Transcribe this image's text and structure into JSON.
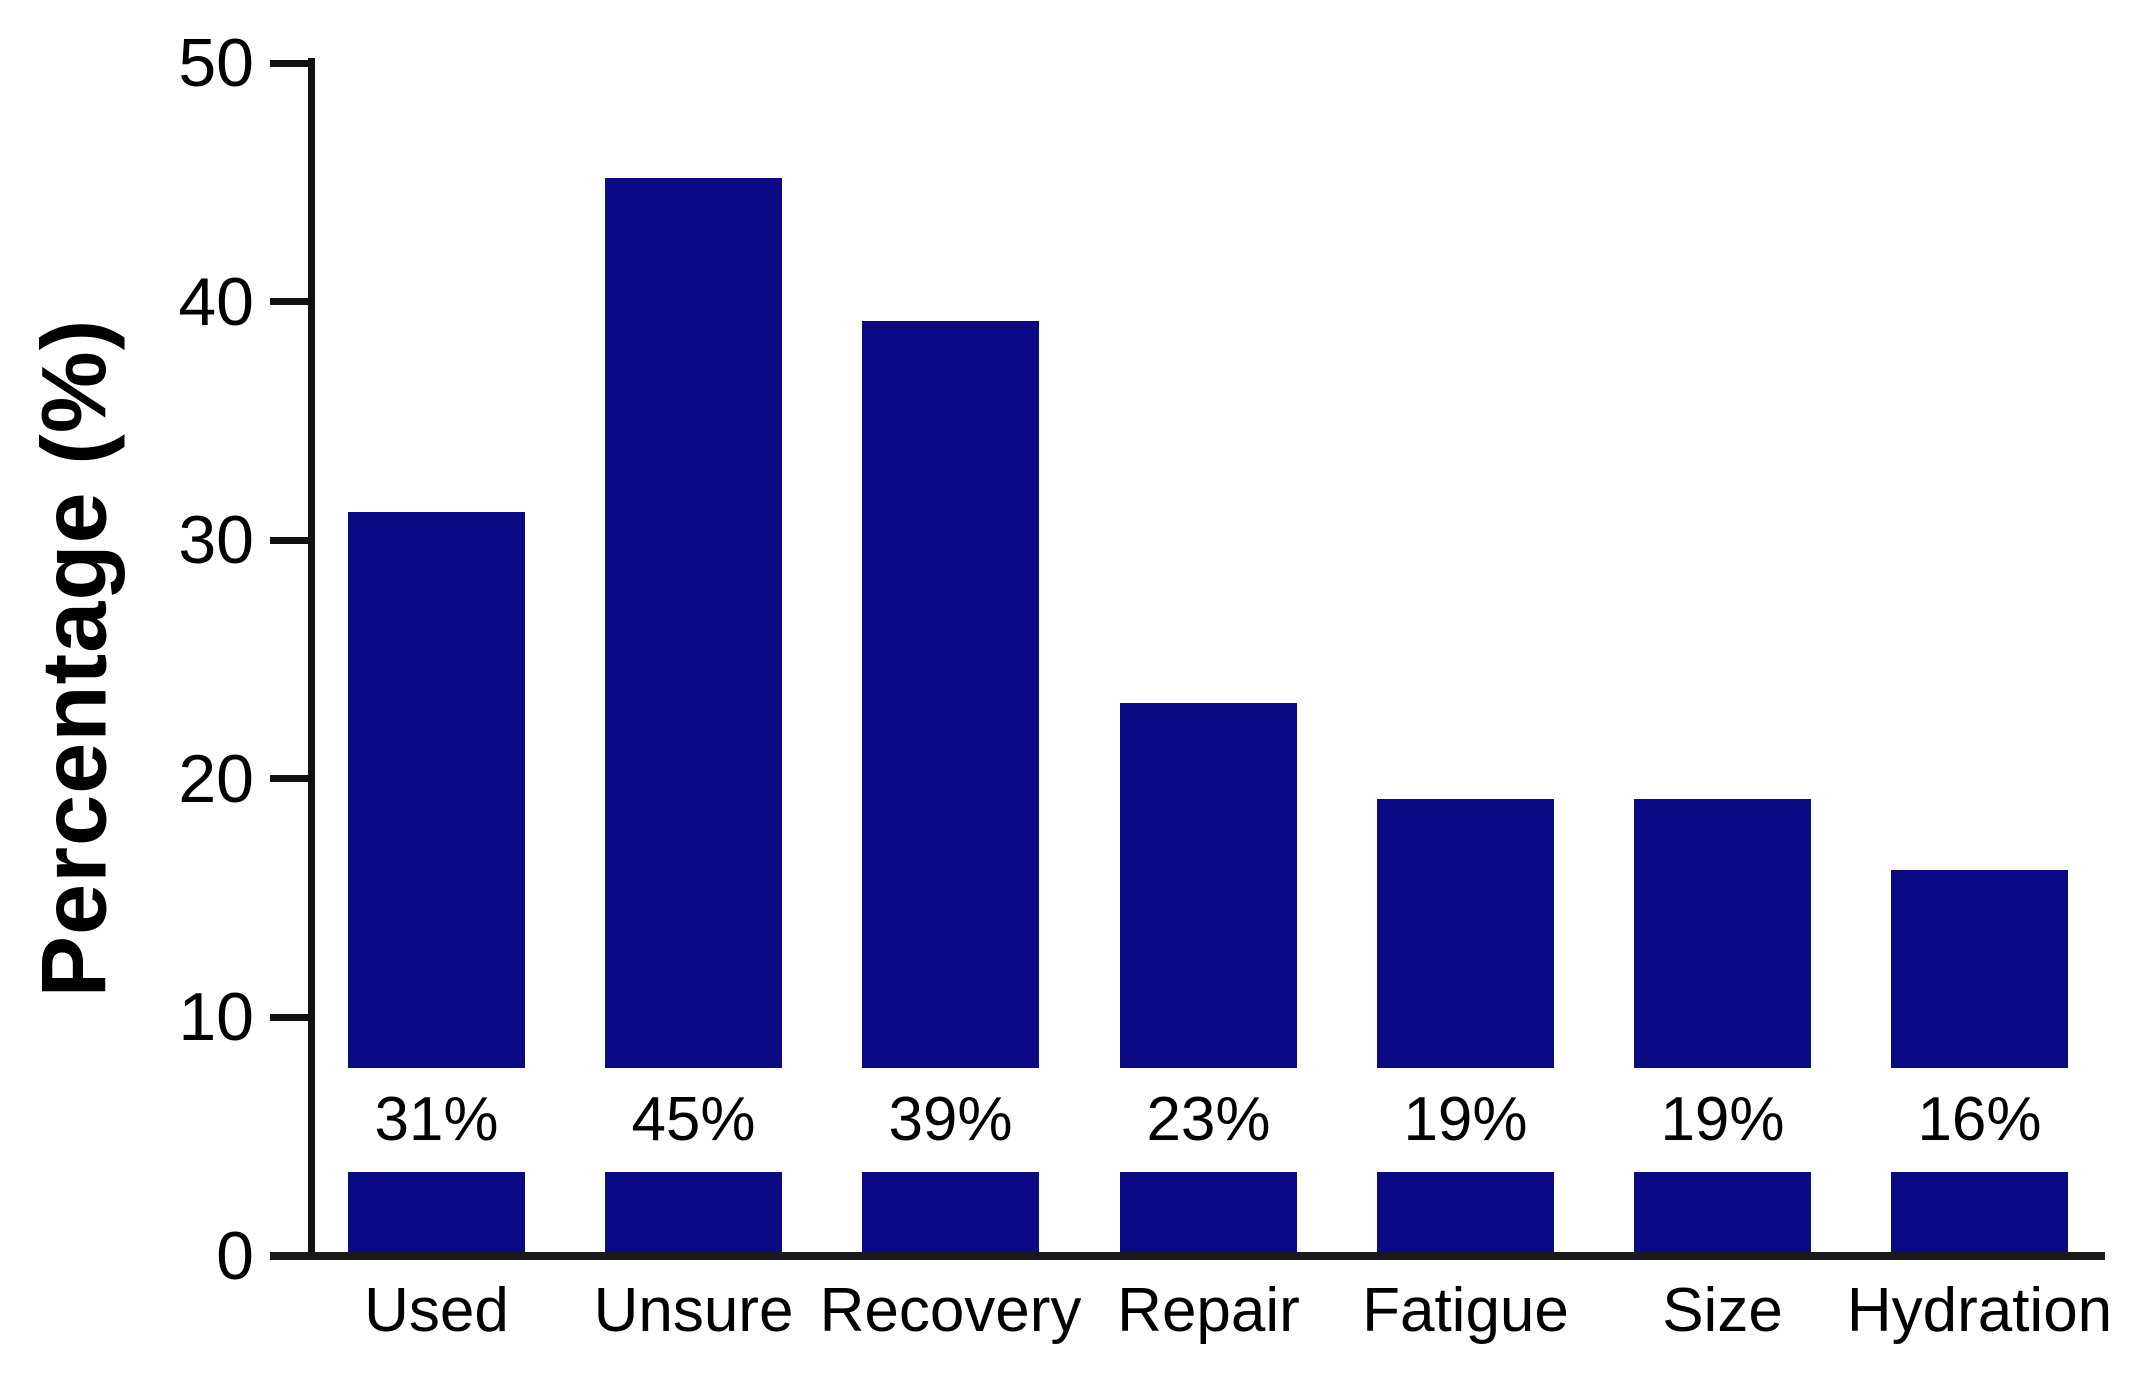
{
  "chart_data": {
    "type": "bar",
    "categories": [
      "Used",
      "Unsure",
      "Recovery",
      "Repair",
      "Fatigue",
      "Size",
      "Hydration"
    ],
    "values": [
      31,
      45,
      39,
      23,
      19,
      19,
      16
    ],
    "value_labels": [
      "31%",
      "45%",
      "39%",
      "23%",
      "19%",
      "19%",
      "16%"
    ],
    "title": "",
    "xlabel": "",
    "ylabel": "Percentage (%)",
    "ylim": [
      0,
      50
    ],
    "yticks": [
      0,
      10,
      20,
      30,
      40,
      50
    ],
    "grid": false,
    "legend": false,
    "bar_color": "#0a0a84",
    "axis_color": "#111111",
    "baseline_color": "#1a1a1a",
    "text_color": "#000000",
    "background_color": "#ffffff",
    "annotation_band": "white band across bars containing percentage labels"
  }
}
